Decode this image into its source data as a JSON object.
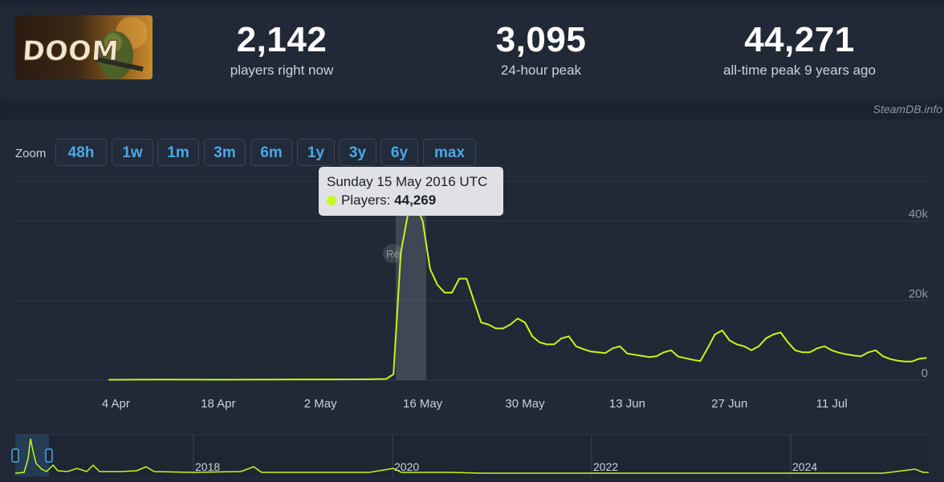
{
  "stats": [
    {
      "value": "2,142",
      "label": "players right now"
    },
    {
      "value": "3,095",
      "label": "24-hour peak"
    },
    {
      "value": "44,271",
      "label": "all-time peak 9 years ago"
    }
  ],
  "game": {
    "logo_text": "DOOM"
  },
  "credit": "SteamDB.info",
  "zoom": {
    "label": "Zoom",
    "buttons": [
      "48h",
      "1w",
      "1m",
      "3m",
      "6m",
      "1y",
      "3y",
      "6y",
      "max"
    ]
  },
  "tooltip": {
    "date": "Sunday 15 May 2016 UTC",
    "series_label": "Players:",
    "value": "44,269"
  },
  "reset_label": "Re",
  "colors": {
    "line": "#c4f81a",
    "accent": "#4aa7e8",
    "background": "#1b2230",
    "panel": "#212836"
  },
  "chart_data": {
    "type": "line",
    "x_tick_labels": [
      "4 Apr",
      "18 Apr",
      "2 May",
      "16 May",
      "30 May",
      "13 Jun",
      "27 Jun",
      "11 Jul"
    ],
    "y_tick_labels": [
      "40k",
      "20k",
      "0"
    ],
    "ylim": [
      0,
      50000
    ],
    "x_start": "2016-03-31",
    "series": [
      {
        "dates": [
          "2016-04-03",
          "2016-04-10",
          "2016-04-20",
          "2016-05-01",
          "2016-05-08",
          "2016-05-11",
          "2016-05-12",
          "2016-05-13",
          "2016-05-14",
          "2016-05-15",
          "2016-05-16",
          "2016-05-17",
          "2016-05-18",
          "2016-05-19",
          "2016-05-20",
          "2016-05-21",
          "2016-05-22",
          "2016-05-23",
          "2016-05-24",
          "2016-05-25",
          "2016-05-26",
          "2016-05-27",
          "2016-05-28",
          "2016-05-29",
          "2016-05-30",
          "2016-05-31",
          "2016-06-01",
          "2016-06-02",
          "2016-06-03",
          "2016-06-04",
          "2016-06-05",
          "2016-06-06",
          "2016-06-07",
          "2016-06-08",
          "2016-06-09",
          "2016-06-10",
          "2016-06-11",
          "2016-06-12",
          "2016-06-13",
          "2016-06-14",
          "2016-06-15",
          "2016-06-16",
          "2016-06-17",
          "2016-06-18",
          "2016-06-19",
          "2016-06-20",
          "2016-06-21",
          "2016-06-22",
          "2016-06-23",
          "2016-06-24",
          "2016-06-25",
          "2016-06-26",
          "2016-06-27",
          "2016-06-28",
          "2016-06-29",
          "2016-06-30",
          "2016-07-01",
          "2016-07-02",
          "2016-07-03",
          "2016-07-04",
          "2016-07-05",
          "2016-07-06",
          "2016-07-07",
          "2016-07-08",
          "2016-07-09",
          "2016-07-10",
          "2016-07-11",
          "2016-07-12",
          "2016-07-13",
          "2016-07-14",
          "2016-07-15",
          "2016-07-16",
          "2016-07-17",
          "2016-07-18",
          "2016-07-19",
          "2016-07-20",
          "2016-07-21",
          "2016-07-22",
          "2016-07-23",
          "2016-07-24"
        ],
        "values": [
          100,
          150,
          120,
          180,
          200,
          300,
          1500,
          32000,
          42000,
          44269,
          40000,
          28000,
          24000,
          22000,
          22000,
          25500,
          25500,
          20000,
          14500,
          14000,
          13000,
          13000,
          14000,
          15500,
          14500,
          11000,
          9500,
          9000,
          9000,
          10500,
          11000,
          8500,
          7800,
          7200,
          7000,
          6800,
          8000,
          8500,
          6700,
          6400,
          6100,
          5800,
          6000,
          7000,
          7500,
          5900,
          5500,
          5100,
          4800,
          8000,
          11500,
          12500,
          10000,
          9000,
          8500,
          7500,
          8500,
          10500,
          11500,
          12000,
          9500,
          7500,
          7000,
          7000,
          8000,
          8500,
          7500,
          6900,
          6500,
          6200,
          6000,
          7000,
          7500,
          6000,
          5300,
          4900,
          4700,
          4700,
          5400,
          5600
        ]
      }
    ]
  },
  "navigator": {
    "year_labels": [
      "2018",
      "2020",
      "2022",
      "2024"
    ]
  }
}
